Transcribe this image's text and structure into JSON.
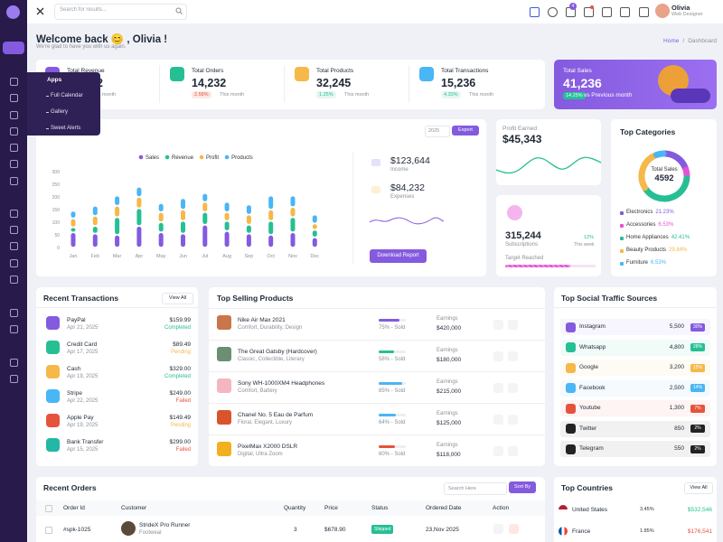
{
  "header": {
    "search_placeholder": "Search for results...",
    "cart_count": 4,
    "user_name": "Olivia",
    "user_role": "Web Designer"
  },
  "sidebar_flyout": {
    "title": "Apps",
    "items": [
      "Full Calendar",
      "Gallery",
      "Sweet Alerts"
    ]
  },
  "welcome": {
    "title": "Welcome back 😊 , Olivia !",
    "subtitle": "We're glad to have you with us again."
  },
  "breadcrumb": {
    "items": [
      "Home",
      "Dashboard"
    ],
    "separator": "/"
  },
  "stats": [
    {
      "label": "Total Revenue",
      "value": "32",
      "period": "This month",
      "color": "#845adf"
    },
    {
      "label": "Total Orders",
      "value": "14,232",
      "change": "2.58%",
      "trend": "down",
      "period": "This month",
      "color": "#26bf94"
    },
    {
      "label": "Total Products",
      "value": "32,245",
      "change": "1.25%",
      "trend": "up",
      "period": "This month",
      "color": "#f5b849"
    },
    {
      "label": "Total Transactions",
      "value": "15,236",
      "change": "4.33%",
      "trend": "up",
      "period": "This month",
      "color": "#49b6f5"
    }
  ],
  "sales_card": {
    "label": "Total Sales",
    "value": "41,236",
    "change": "14.25%",
    "comparison": "vs Previous month"
  },
  "overview": {
    "type": "bar",
    "stacked": true,
    "year": "2025",
    "export_label": "Export",
    "categories": [
      "Jan",
      "Feb",
      "Mar",
      "Apr",
      "May",
      "Jun",
      "Jul",
      "Aug",
      "Sep",
      "Oct",
      "Nov",
      "Dec"
    ],
    "series": [
      {
        "name": "Sales",
        "color": "#845adf",
        "values": [
          60,
          55,
          50,
          85,
          60,
          55,
          90,
          65,
          55,
          50,
          60,
          40
        ]
      },
      {
        "name": "Revenue",
        "color": "#26bf94",
        "values": [
          20,
          30,
          70,
          70,
          40,
          50,
          50,
          40,
          35,
          55,
          60,
          30
        ]
      },
      {
        "name": "Profit",
        "color": "#f5b849",
        "values": [
          35,
          40,
          45,
          45,
          40,
          45,
          40,
          35,
          40,
          45,
          40,
          25
        ]
      },
      {
        "name": "Products",
        "color": "#49b6f5",
        "values": [
          30,
          40,
          40,
          40,
          35,
          45,
          35,
          40,
          40,
          55,
          45,
          35
        ]
      }
    ],
    "ylim": [
      0,
      300
    ],
    "yticks": [
      0,
      50,
      100,
      150,
      200,
      250,
      300
    ],
    "income": {
      "value": "$123,644",
      "label": "Income"
    },
    "expenses": {
      "value": "$84,232",
      "label": "Expenses"
    },
    "download_label": "Download Report"
  },
  "profit": {
    "label": "Profit Earned",
    "value": "$45,343"
  },
  "subscriptions": {
    "value": "315,244",
    "label": "Subscriptions",
    "change": "12%",
    "period": "This week",
    "target_label": "Target Reached"
  },
  "top_categories": {
    "type": "donut",
    "title": "Top Categories",
    "center_label": "Total Sales",
    "center_value": 4592,
    "categories": [
      "Electronics",
      "Accessories",
      "Home Appliances",
      "Beauty Products",
      "Furniture"
    ],
    "values": [
      21.23,
      6.53,
      42.41,
      29.84,
      6.53
    ],
    "value_labels": [
      "21.23%",
      "6.53%",
      "42.41%",
      "29.84%",
      "6.53%"
    ],
    "colors": [
      "#845adf",
      "#e354d4",
      "#26bf94",
      "#f5b849",
      "#49b6f5"
    ]
  },
  "recent_transactions": {
    "title": "Recent Transactions",
    "view_all": "View All",
    "rows": [
      {
        "name": "PayPal",
        "date": "Apr 21, 2025",
        "amount": "$159.99",
        "status": "Completed",
        "icon_color": "#845adf",
        "status_color": "#26bf94"
      },
      {
        "name": "Credit Card",
        "date": "Apr 17, 2025",
        "amount": "$89.49",
        "status": "Pending",
        "icon_color": "#26bf94",
        "status_color": "#f5b849"
      },
      {
        "name": "Cash",
        "date": "Apr 19, 2025",
        "amount": "$329.00",
        "status": "Completed",
        "icon_color": "#f5b849",
        "status_color": "#26bf94"
      },
      {
        "name": "Stripe",
        "date": "Apr 22, 2025",
        "amount": "$249.00",
        "status": "Failed",
        "icon_color": "#49b6f5",
        "status_color": "#e6533c"
      },
      {
        "name": "Apple Pay",
        "date": "Apr 19, 2025",
        "amount": "$149.49",
        "status": "Pending",
        "icon_color": "#e6533c",
        "status_color": "#f5b849"
      },
      {
        "name": "Bank Transfer",
        "date": "Apr 15, 2025",
        "amount": "$299.00",
        "status": "Failed",
        "icon_color": "#23b7a5",
        "status_color": "#e6533c"
      }
    ]
  },
  "top_products": {
    "title": "Top Selling Products",
    "earnings_label": "Earnings",
    "rows": [
      {
        "name": "Nike Air Max 2021",
        "tags": "Comfort, Durability, Design",
        "sold": 75,
        "sold_label": "75% - Sold",
        "earnings": "$420,000",
        "color": "#845adf"
      },
      {
        "name": "The Great Gatsby (Hardcover)",
        "tags": "Classic, Collectible, Literary",
        "sold": 58,
        "sold_label": "58% - Sold",
        "earnings": "$180,000",
        "color": "#26bf94"
      },
      {
        "name": "Sony WH-1000XM4 Headphones",
        "tags": "Comfort, Battery",
        "sold": 85,
        "sold_label": "85% - Sold",
        "earnings": "$215,000",
        "color": "#49b6f5"
      },
      {
        "name": "Chanel No. 5 Eau de Parfum",
        "tags": "Floral, Elegant, Luxury",
        "sold": 64,
        "sold_label": "64% - Sold",
        "earnings": "$125,000",
        "color": "#49b6f5"
      },
      {
        "name": "PixelMax X2000 DSLR",
        "tags": "Digital, Ultra Zoom",
        "sold": 60,
        "sold_label": "60% - Sold",
        "earnings": "$118,000",
        "color": "#e6533c"
      }
    ]
  },
  "social": {
    "title": "Top Social Traffic Sources",
    "rows": [
      {
        "name": "Instagram",
        "value": "5,500",
        "percent": "30%",
        "color": "#845adf"
      },
      {
        "name": "Whatsapp",
        "value": "4,800",
        "percent": "28%",
        "color": "#26bf94"
      },
      {
        "name": "Google",
        "value": "3,200",
        "percent": "15%",
        "color": "#f5b849"
      },
      {
        "name": "Facebook",
        "value": "2,500",
        "percent": "14%",
        "color": "#49b6f5"
      },
      {
        "name": "Youtube",
        "value": "1,300",
        "percent": "7%",
        "color": "#e6533c"
      },
      {
        "name": "Twitter",
        "value": "850",
        "percent": "2%",
        "color": "#232323"
      },
      {
        "name": "Telegram",
        "value": "550",
        "percent": "2%",
        "color": "#232323"
      }
    ]
  },
  "recent_orders": {
    "title": "Recent Orders",
    "search_placeholder": "Search Here",
    "sort_label": "Sort By",
    "columns": [
      "Order Id",
      "Customer",
      "Quantity",
      "Price",
      "Status",
      "Ordered Date",
      "Action"
    ],
    "rows": [
      {
        "order_id": "#spk-1025",
        "product": "StrideX Pro Runner",
        "category": "Footwear",
        "quantity": 3,
        "price": "$678.90",
        "status": "Shipped",
        "date": "23,Nov 2025"
      }
    ]
  },
  "top_countries": {
    "title": "Top Countries",
    "view_all": "View All",
    "rows": [
      {
        "name": "United States",
        "change": "3.45%",
        "amount": "$532,546",
        "color": "#26bf94"
      },
      {
        "name": "France",
        "change": "1.85%",
        "amount": "$176,541",
        "color": "#e6533c"
      }
    ]
  }
}
